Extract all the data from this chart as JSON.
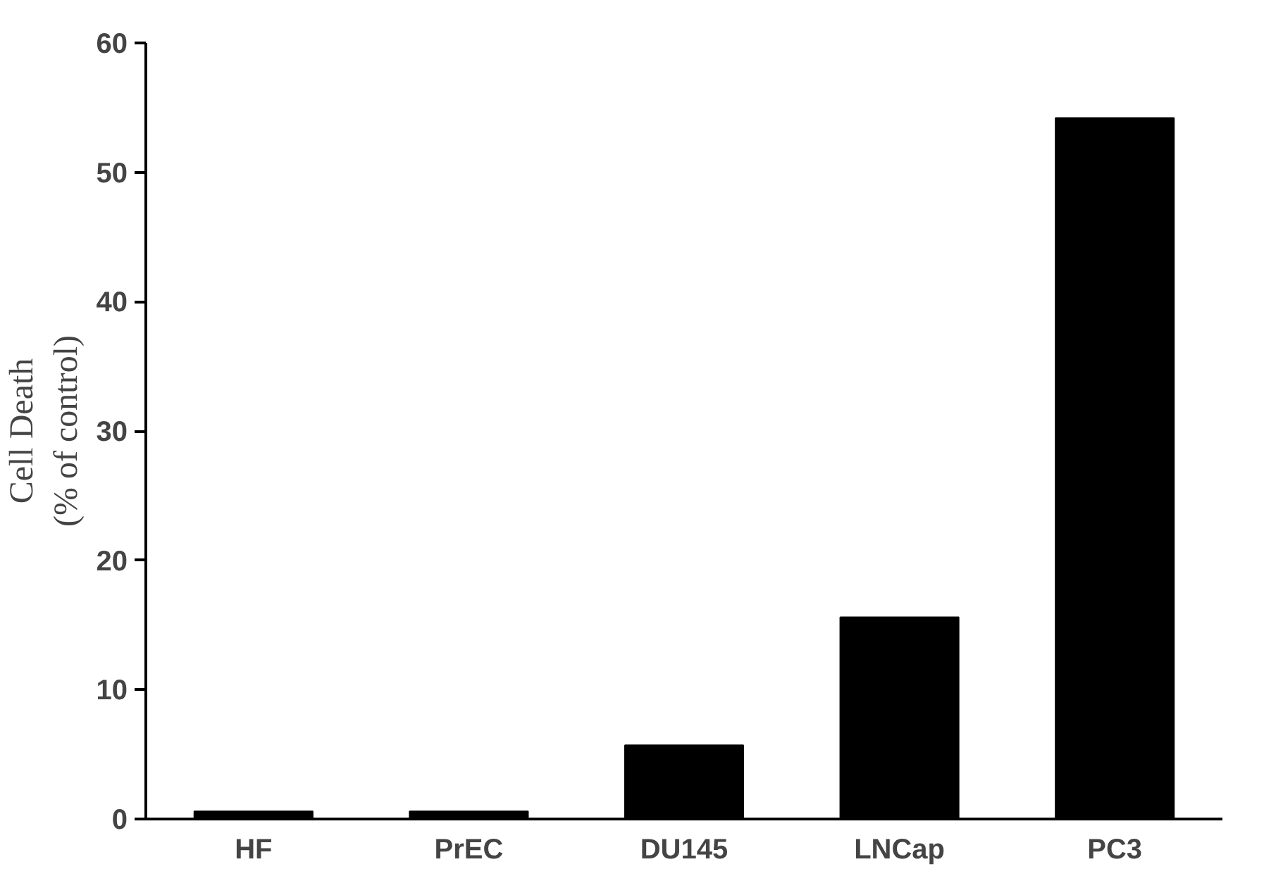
{
  "chart_data": {
    "type": "bar",
    "ylabel": "Cell Death\n(% of control)",
    "categories": [
      "HF",
      "PrEC",
      "DU145",
      "LNCap",
      "PC3"
    ],
    "values": [
      0.6,
      0.6,
      5.7,
      15.6,
      54.2
    ],
    "color": "#000000",
    "ylim": [
      0,
      60
    ],
    "yticks": [
      0,
      10,
      20,
      30,
      40,
      50,
      60
    ],
    "grid": false
  }
}
